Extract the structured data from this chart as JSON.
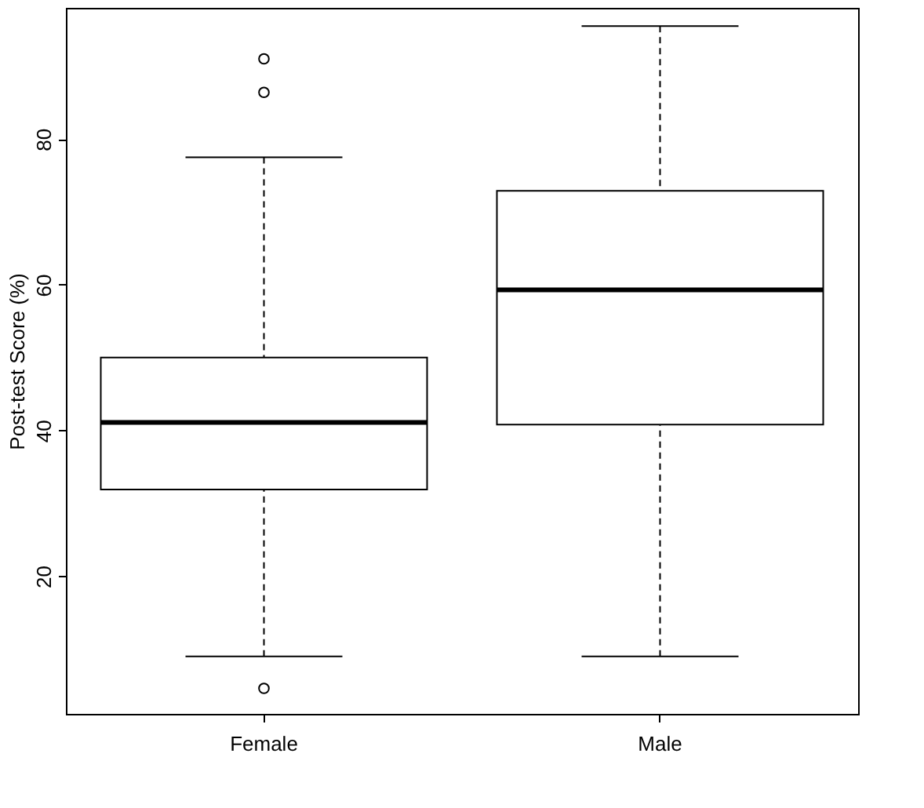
{
  "chart_data": {
    "type": "box",
    "ylabel": "Post-test Score (%)",
    "categories": [
      "Female",
      "Male"
    ],
    "ylim": [
      1.1,
      98
    ],
    "yticks": [
      20,
      40,
      60,
      80
    ],
    "boxes": [
      {
        "low": 9.0,
        "q1": 31.9,
        "median": 41.1,
        "q3": 50.0,
        "high": 77.5,
        "outliers": [
          91.0,
          86.4,
          4.6
        ]
      },
      {
        "low": 9.0,
        "q1": 40.8,
        "median": 59.3,
        "q3": 72.9,
        "high": 95.5
      }
    ]
  }
}
